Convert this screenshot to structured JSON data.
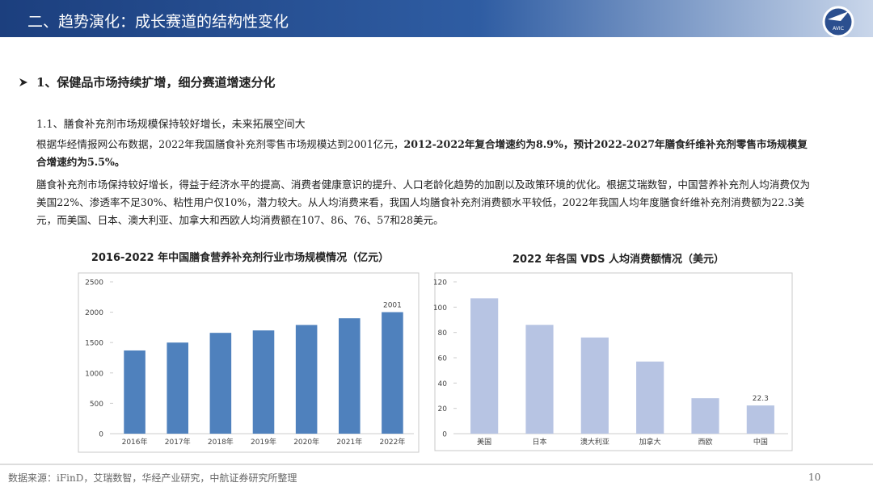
{
  "header": {
    "title": "二、趋势演化：成长赛道的结构性变化",
    "logo": "AVIC"
  },
  "section": {
    "heading": "1、保健品市场持续扩增，细分赛道增速分化",
    "subheading": "1.1、膳食补充剂市场规模保持较好增长，未来拓展空间大",
    "paragraphs": [
      {
        "plain": "根据华经情报网公布数据，2022年我国膳食补充剂零售市场规模达到2001亿元，",
        "emphasis": "2012-2022年复合增速约为8.9%，预计2022-2027年膳食纤维补充剂零售市场规模复合增速约为5.5%。"
      },
      {
        "plain": "膳食补充剂市场保持较好增长，得益于经济水平的提高、消费者健康意识的提升、人口老龄化趋势的加剧以及政策环境的优化。根据艾瑞数智，中国营养补充剂人均消费仅为美国22%、渗透率不足30%、粘性用户仅10%，潜力较大。从人均消费来看，我国人均膳食补充剂消费额水平较低，2022年我国人均年度膳食纤维补充剂消费额为22.3美元，而美国、日本、澳大利亚、加拿大和西欧人均消费额在107、86、76、57和28美元。"
      }
    ]
  },
  "chart_data": [
    {
      "type": "bar",
      "title": "2016-2022 年中国膳食营养补充剂行业市场规模情况（亿元）",
      "categories": [
        "2016年",
        "2017年",
        "2018年",
        "2019年",
        "2020年",
        "2021年",
        "2022年"
      ],
      "values": [
        1370,
        1500,
        1660,
        1700,
        1790,
        1900,
        2001
      ],
      "value_labels": [
        null,
        null,
        null,
        null,
        null,
        null,
        "2001"
      ],
      "color": "#4f81bd",
      "ylim": [
        0,
        2500
      ],
      "yticks": [
        0,
        500,
        1000,
        1500,
        2000,
        2500
      ],
      "grid": false
    },
    {
      "type": "bar",
      "title": "2022 年各国 VDS 人均消费额情况（美元）",
      "categories": [
        "美国",
        "日本",
        "澳大利亚",
        "加拿大",
        "西欧",
        "中国"
      ],
      "values": [
        107,
        86,
        76,
        57,
        28,
        22.3
      ],
      "value_labels": [
        null,
        null,
        null,
        null,
        null,
        "22.3"
      ],
      "color": "#b7c4e3",
      "ylim": [
        0,
        120
      ],
      "yticks": [
        0,
        20,
        40,
        60,
        80,
        100,
        120
      ],
      "grid": false
    }
  ],
  "footer": {
    "source": "数据来源：iFinD，艾瑞数智，华经产业研究，中航证券研究所整理",
    "page": "10"
  }
}
